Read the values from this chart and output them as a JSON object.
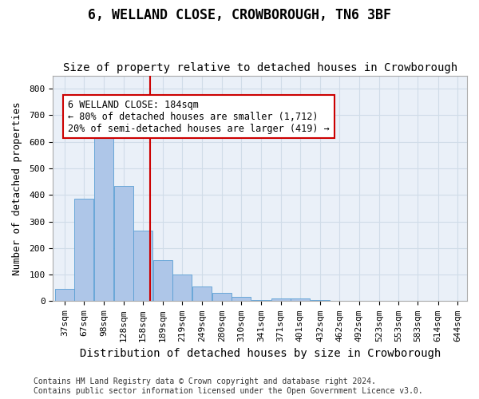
{
  "title": "6, WELLAND CLOSE, CROWBOROUGH, TN6 3BF",
  "subtitle": "Size of property relative to detached houses in Crowborough",
  "xlabel": "Distribution of detached houses by size in Crowborough",
  "ylabel": "Number of detached properties",
  "bin_labels": [
    "37sqm",
    "67sqm",
    "98sqm",
    "128sqm",
    "158sqm",
    "189sqm",
    "219sqm",
    "249sqm",
    "280sqm",
    "310sqm",
    "341sqm",
    "371sqm",
    "401sqm",
    "432sqm",
    "462sqm",
    "492sqm",
    "523sqm",
    "553sqm",
    "583sqm",
    "614sqm",
    "644sqm"
  ],
  "bin_edges": [
    37,
    67,
    98,
    128,
    158,
    189,
    219,
    249,
    280,
    310,
    341,
    371,
    401,
    432,
    462,
    492,
    523,
    553,
    583,
    614,
    644
  ],
  "bar_heights": [
    47,
    385,
    620,
    435,
    265,
    155,
    100,
    55,
    30,
    15,
    5,
    10,
    10,
    5,
    2,
    2,
    1,
    0,
    0,
    1
  ],
  "bar_color": "#aec6e8",
  "bar_edge_color": "#5a9fd4",
  "property_value": 184,
  "vline_color": "#cc0000",
  "annotation_text": "6 WELLAND CLOSE: 184sqm\n← 80% of detached houses are smaller (1,712)\n20% of semi-detached houses are larger (419) →",
  "annotation_box_color": "#ffffff",
  "annotation_box_edge_color": "#cc0000",
  "ylim": [
    0,
    850
  ],
  "yticks": [
    0,
    100,
    200,
    300,
    400,
    500,
    600,
    700,
    800
  ],
  "grid_color": "#d0dce8",
  "bg_color": "#eaf0f8",
  "footer_text": "Contains HM Land Registry data © Crown copyright and database right 2024.\nContains public sector information licensed under the Open Government Licence v3.0.",
  "title_fontsize": 12,
  "subtitle_fontsize": 10,
  "xlabel_fontsize": 10,
  "ylabel_fontsize": 9,
  "tick_fontsize": 8,
  "annotation_fontsize": 8.5
}
